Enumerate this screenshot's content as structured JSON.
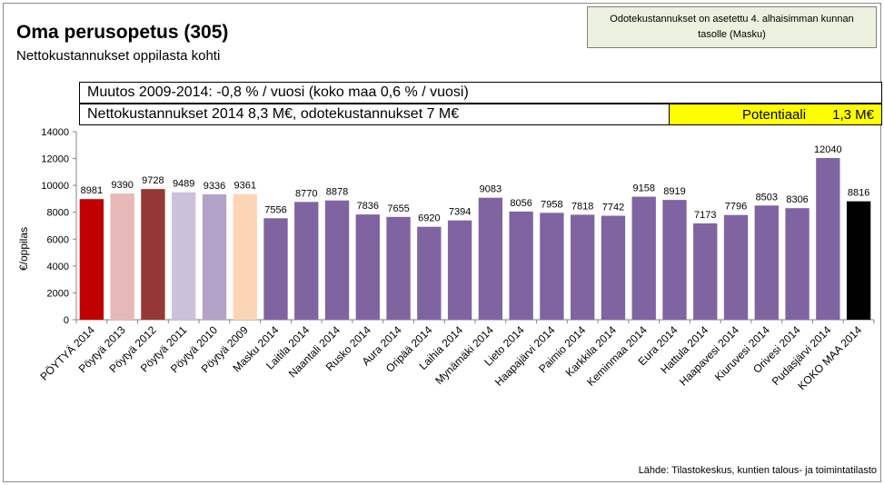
{
  "header": {
    "title": "Oma perusopetus (305)",
    "subtitle": "Nettokustannukset  oppilasta kohti"
  },
  "note": {
    "line1": "Odotekustannukset on asetettu 4. alhaisimman kunnan",
    "line2": "tasolle (Masku)"
  },
  "info": {
    "change_text": "Muutos 2009-2014: -0,8 % / vuosi (koko maa 0,6 % / vuosi)",
    "cost_text": "Nettokustannukset 2014 8,3 M€, odotekustannukset 7 M€",
    "potential_label": "Potentiaali",
    "potential_value": "1,3 M€"
  },
  "source": "Lähde: Tilastokeskus, kuntien talous- ja toimintatilasto",
  "colors": {
    "potential_bg": "#ffff00",
    "note_bg": "#ebf1de"
  },
  "chart_data": {
    "type": "bar",
    "ylabel": "€/oppilas",
    "ylim": [
      0,
      14000
    ],
    "yticks": [
      0,
      2000,
      4000,
      6000,
      8000,
      10000,
      12000,
      14000
    ],
    "grid": false,
    "categories": [
      "PÖYTYÄ 2014",
      "Pöytyä 2013",
      "Pöytyä 2012",
      "Pöytyä 2011",
      "Pöytyä 2010",
      "Pöytyä 2009",
      "Masku 2014",
      "Laitila 2014",
      "Naantali 2014",
      "Rusko 2014",
      "Aura 2014",
      "Oripää 2014",
      "Laihia 2014",
      "Mynämäki 2014",
      "Lieto 2014",
      "Haapajärvi 2014",
      "Paimio 2014",
      "Karkkila 2014",
      "Keminmaa 2014",
      "Eura 2014",
      "Hattula 2014",
      "Haapavesi 2014",
      "Kiuruvesi 2014",
      "Orivesi 2014",
      "Pudasjärvi 2014",
      "KOKO MAA 2014"
    ],
    "values": [
      8981,
      9390,
      9728,
      9489,
      9336,
      9361,
      7556,
      8770,
      8878,
      7836,
      7655,
      6920,
      7394,
      9083,
      8056,
      7958,
      7818,
      7742,
      9158,
      8919,
      7173,
      7796,
      8503,
      8306,
      12040,
      8816
    ],
    "bar_colors": [
      "#c00000",
      "#e6b9b8",
      "#953735",
      "#ccc1da",
      "#b3a2c7",
      "#fcd5b5",
      "#8064a2",
      "#8064a2",
      "#8064a2",
      "#8064a2",
      "#8064a2",
      "#8064a2",
      "#8064a2",
      "#8064a2",
      "#8064a2",
      "#8064a2",
      "#8064a2",
      "#8064a2",
      "#8064a2",
      "#8064a2",
      "#8064a2",
      "#8064a2",
      "#8064a2",
      "#8064a2",
      "#8064a2",
      "#000000"
    ]
  }
}
